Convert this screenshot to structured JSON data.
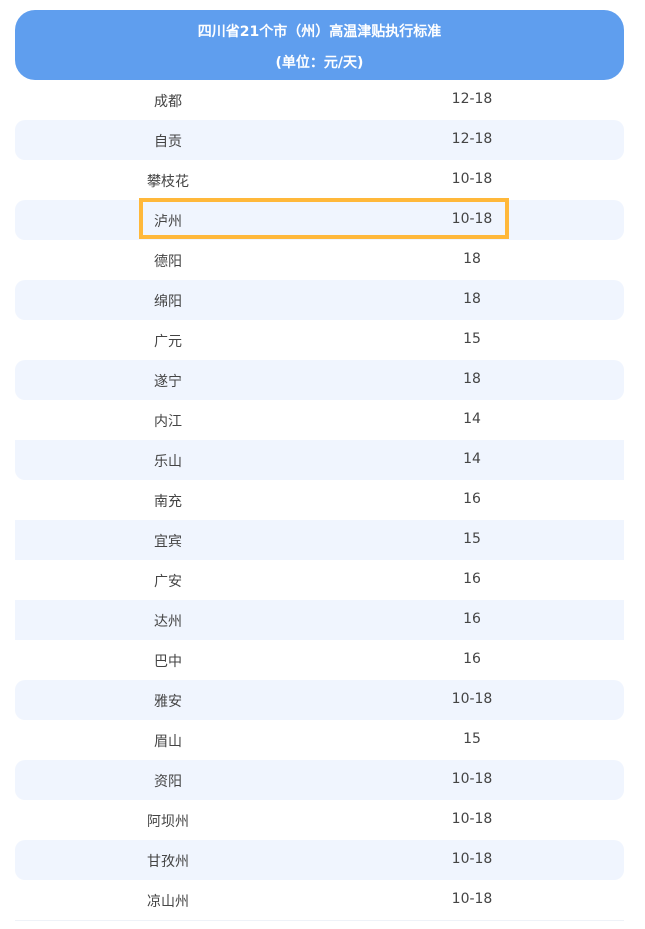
{
  "header": {
    "title": "四川省21个市（州）高温津贴执行标准",
    "unit": "(单位：元/天)"
  },
  "highlight_color": "#ffb83a",
  "header_color": "#5f9eee",
  "rows": [
    {
      "city": "成都",
      "value": "12-18"
    },
    {
      "city": "自贡",
      "value": "12-18"
    },
    {
      "city": "攀枝花",
      "value": "10-18"
    },
    {
      "city": "泸州",
      "value": "10-18",
      "highlighted": true
    },
    {
      "city": "德阳",
      "value": "18"
    },
    {
      "city": "绵阳",
      "value": "18"
    },
    {
      "city": "广元",
      "value": "15"
    },
    {
      "city": "遂宁",
      "value": "18"
    },
    {
      "city": "内江",
      "value": "14"
    },
    {
      "city": "乐山",
      "value": "14"
    },
    {
      "city": "南充",
      "value": "16"
    },
    {
      "city": "宜宾",
      "value": "15"
    },
    {
      "city": "广安",
      "value": "16"
    },
    {
      "city": "达州",
      "value": "16"
    },
    {
      "city": "巴中",
      "value": "16"
    },
    {
      "city": "雅安",
      "value": "10-18"
    },
    {
      "city": "眉山",
      "value": "15"
    },
    {
      "city": "资阳",
      "value": "10-18"
    },
    {
      "city": "阿坝州",
      "value": "10-18"
    },
    {
      "city": "甘孜州",
      "value": "10-18"
    },
    {
      "city": "凉山州",
      "value": "10-18"
    }
  ]
}
